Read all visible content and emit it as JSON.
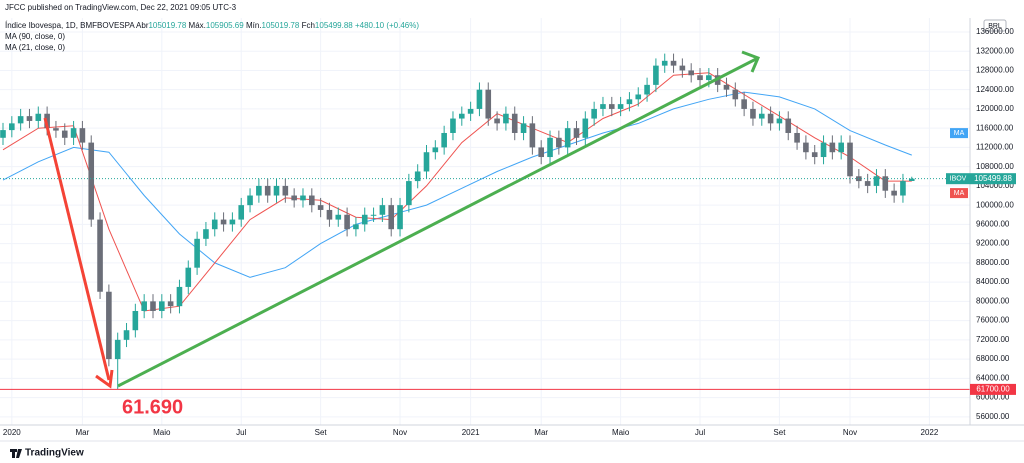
{
  "header": {
    "published": "JFCC published on TradingView.com, Dec 22, 2021 09:05 UTC-3",
    "footer": "TradingView"
  },
  "chart_data": {
    "type": "candlestick",
    "name": "Índice Ibovespa, 1D, BMFBOVESPA",
    "open_label": "Abr",
    "high_label": "Máx.",
    "low_label": "Mín.",
    "close_label": "Fch",
    "change": "+480.10 (+0.46%)",
    "up_color": "#26a69a",
    "down_color": "#6b6e78",
    "open": [
      114000,
      115600,
      117000,
      118500,
      117500,
      119000,
      116000,
      115500,
      114000,
      116000,
      113000,
      97000,
      82000,
      68000,
      72000,
      74000,
      78000,
      80000,
      78000,
      80000,
      79000,
      83000,
      87000,
      93000,
      95000,
      97000,
      96000,
      97000,
      100000,
      102000,
      104000,
      102000,
      104000,
      102000,
      101000,
      102000,
      100000,
      99000,
      97000,
      98000,
      95000,
      96000,
      98000,
      98000,
      100000,
      95000,
      100000,
      105000,
      107000,
      111000,
      112000,
      115000,
      118000,
      119000,
      120000,
      124000,
      118000,
      117000,
      119000,
      115000,
      117000,
      112000,
      110000,
      114000,
      112000,
      116000,
      114000,
      118000,
      120000,
      121000,
      120000,
      121000,
      122000,
      123000,
      125000,
      129000,
      130000,
      129000,
      128000,
      127000,
      126000,
      127000,
      125000,
      124000,
      122000,
      120000,
      118000,
      119000,
      117000,
      118000,
      115000,
      113000,
      111000,
      110000,
      113000,
      111000,
      113000,
      106000,
      105000,
      104000,
      106000,
      103000,
      102000,
      105019.78
    ],
    "high": [
      117100,
      118500,
      120000,
      120000,
      120500,
      120500,
      117500,
      117000,
      117500,
      117500,
      114500,
      98500,
      83500,
      73500,
      75500,
      79500,
      81500,
      81500,
      81500,
      81500,
      84500,
      88500,
      94500,
      96500,
      98500,
      98500,
      98500,
      101500,
      103500,
      105500,
      105500,
      105500,
      105500,
      103500,
      103500,
      103500,
      101500,
      100500,
      99500,
      99500,
      97500,
      99500,
      99500,
      101500,
      101500,
      101500,
      106500,
      108500,
      112500,
      113500,
      116500,
      119500,
      120500,
      121500,
      125500,
      125500,
      119500,
      120500,
      120500,
      118500,
      118500,
      113500,
      115500,
      115500,
      117500,
      117500,
      119500,
      121500,
      122500,
      122500,
      122500,
      123500,
      124500,
      126500,
      130500,
      131500,
      131500,
      130500,
      129500,
      128500,
      128500,
      128500,
      126500,
      125500,
      123500,
      121500,
      120500,
      120500,
      119500,
      119500,
      116500,
      114500,
      112500,
      114500,
      114500,
      114500,
      114500,
      107500,
      106500,
      107500,
      107500,
      104500,
      106500,
      105905.69
    ],
    "low": [
      112500,
      114100,
      115500,
      116000,
      116000,
      114500,
      114000,
      112500,
      112500,
      111500,
      95500,
      80500,
      66500,
      61690,
      70500,
      72500,
      76500,
      76500,
      76500,
      77500,
      77500,
      81500,
      85500,
      91500,
      93500,
      94500,
      94500,
      95500,
      98500,
      100500,
      100500,
      100500,
      100500,
      99500,
      99500,
      98500,
      97500,
      95500,
      95500,
      93500,
      93500,
      94500,
      96500,
      96500,
      93500,
      93500,
      98500,
      103500,
      105500,
      109500,
      110500,
      113500,
      116500,
      117500,
      118500,
      116500,
      115500,
      115500,
      113500,
      113500,
      110500,
      108500,
      108500,
      110500,
      110500,
      112500,
      112500,
      116500,
      118500,
      118500,
      118500,
      119500,
      120500,
      121500,
      123500,
      127500,
      127500,
      126500,
      125500,
      124500,
      124500,
      123500,
      122500,
      120500,
      118500,
      116500,
      116500,
      115500,
      115500,
      113500,
      111500,
      109500,
      108500,
      108500,
      109500,
      109500,
      104500,
      103500,
      102500,
      102500,
      101500,
      100500,
      100500,
      105019.78
    ],
    "close": [
      115600,
      117000,
      118500,
      117500,
      119000,
      116000,
      115500,
      114000,
      116000,
      113000,
      97000,
      82000,
      68000,
      72000,
      74000,
      78000,
      80000,
      78000,
      80000,
      79000,
      83000,
      87000,
      93000,
      95000,
      97000,
      96000,
      97000,
      100000,
      102000,
      104000,
      102000,
      104000,
      102000,
      101000,
      102000,
      100000,
      99000,
      97000,
      98000,
      95000,
      96000,
      98000,
      98000,
      100000,
      95000,
      100000,
      105000,
      107000,
      111000,
      112000,
      115000,
      118000,
      119000,
      120000,
      124000,
      118000,
      117000,
      119000,
      115000,
      117000,
      112000,
      110000,
      114000,
      112000,
      116000,
      114000,
      118000,
      120000,
      121000,
      120000,
      121000,
      122000,
      123000,
      125000,
      129000,
      130000,
      129000,
      128000,
      127000,
      126000,
      127000,
      125000,
      124000,
      122000,
      120000,
      118000,
      119000,
      117000,
      118000,
      115000,
      113000,
      111000,
      110000,
      113000,
      111000,
      113000,
      106000,
      105000,
      104000,
      106000,
      103000,
      102000,
      105000,
      105499.88
    ],
    "lines": [
      {
        "name": "MA (90, close, 0)",
        "color": "#42a5f5",
        "tag": "MA",
        "x": [
          0,
          4,
          8,
          12,
          16,
          20,
          24,
          28,
          32,
          36,
          40,
          44,
          48,
          52,
          56,
          60,
          64,
          68,
          72,
          76,
          80,
          84,
          88,
          92,
          96,
          100,
          103
        ],
        "values": [
          105200,
          109000,
          112000,
          111000,
          102000,
          94000,
          88000,
          85000,
          87000,
          92000,
          96000,
          98000,
          100000,
          103500,
          107000,
          110000,
          112500,
          115000,
          117000,
          120000,
          122000,
          123500,
          122500,
          120000,
          115500,
          112500,
          110400
        ]
      },
      {
        "name": "MA (21, close, 0)",
        "color": "#ef5350",
        "tag": "MA",
        "x": [
          0,
          4,
          8,
          12,
          16,
          20,
          24,
          28,
          32,
          36,
          40,
          44,
          48,
          52,
          56,
          60,
          64,
          68,
          72,
          76,
          80,
          84,
          88,
          92,
          96,
          100,
          103
        ],
        "values": [
          111500,
          116000,
          116500,
          95000,
          78000,
          79000,
          88000,
          97000,
          101500,
          101000,
          97500,
          97000,
          104000,
          113000,
          119000,
          116000,
          113000,
          118000,
          121000,
          127000,
          127500,
          123000,
          118500,
          114000,
          110000,
          105000,
          105000
        ]
      }
    ],
    "price_tag": "IBOV",
    "currency": "BRL",
    "hline": {
      "value": 61700,
      "label": "61700.00",
      "color": "#f23645"
    },
    "annotation": "61.690",
    "ylim": [
      54300,
      138900
    ],
    "yticks": [
      {
        "value": 56000,
        "label": "56000.00"
      },
      {
        "value": 60000,
        "label": "60000.00"
      },
      {
        "value": 64000,
        "label": "64000.00"
      },
      {
        "value": 68000,
        "label": "68000.00"
      },
      {
        "value": 72000,
        "label": "72000.00"
      },
      {
        "value": 76000,
        "label": "76000.00"
      },
      {
        "value": 80000,
        "label": "80000.00"
      },
      {
        "value": 84000,
        "label": "84000.00"
      },
      {
        "value": 88000,
        "label": "88000.00"
      },
      {
        "value": 92000,
        "label": "92000.00"
      },
      {
        "value": 96000,
        "label": "96000.00"
      },
      {
        "value": 100000,
        "label": "100000.00"
      },
      {
        "value": 104000,
        "label": "104000.00"
      },
      {
        "value": 108000,
        "label": "108000.00"
      },
      {
        "value": 112000,
        "label": "112000.00"
      },
      {
        "value": 116000,
        "label": "116000.00"
      },
      {
        "value": 120000,
        "label": "120000.00"
      },
      {
        "value": 124000,
        "label": "124000.00"
      },
      {
        "value": 128000,
        "label": "128000.00"
      },
      {
        "value": 132000,
        "label": "132000.00"
      },
      {
        "value": 136000,
        "label": "136000.00"
      }
    ],
    "xlim": [
      -0.34,
      109.6
    ],
    "xticks": [
      {
        "value": 1,
        "label": "2020"
      },
      {
        "value": 9,
        "label": "Mar"
      },
      {
        "value": 18,
        "label": "Maio"
      },
      {
        "value": 27,
        "label": "Jul"
      },
      {
        "value": 36,
        "label": "Set"
      },
      {
        "value": 45,
        "label": "Nov"
      },
      {
        "value": 53,
        "label": "2021"
      },
      {
        "value": 61,
        "label": "Mar"
      },
      {
        "value": 70,
        "label": "Maio"
      },
      {
        "value": 79,
        "label": "Jul"
      },
      {
        "value": 88,
        "label": "Set"
      },
      {
        "value": 96,
        "label": "Nov"
      },
      {
        "value": 105,
        "label": "2022"
      }
    ],
    "grid": true
  }
}
